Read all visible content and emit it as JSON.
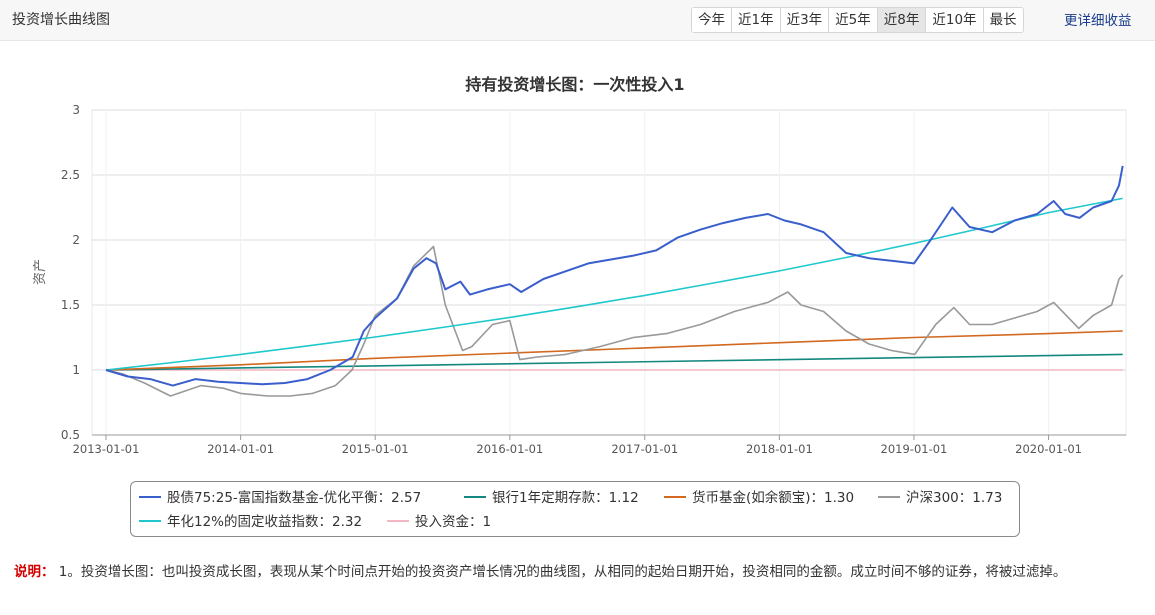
{
  "header": {
    "title": "投资增长曲线图",
    "ranges": [
      "今年",
      "近1年",
      "近3年",
      "近5年",
      "近8年",
      "近10年",
      "最长"
    ],
    "active_range": "近8年",
    "more_link": "更详细收益"
  },
  "chart_data": {
    "type": "line",
    "title": "持有投资增长图：一次性投入1",
    "ylabel": "资产",
    "xlabel": "",
    "ylim": [
      0.5,
      3
    ],
    "yticks": [
      "0.5",
      "1",
      "1.5",
      "2",
      "2.5",
      "3"
    ],
    "yticks_values": [
      0.5,
      1,
      1.5,
      2,
      2.5,
      3
    ],
    "xlim": [
      "2012-11-24",
      "2020-07-29"
    ],
    "xticks": [
      "2013-01-01",
      "2014-01-01",
      "2015-01-01",
      "2016-01-01",
      "2017-01-01",
      "2018-01-01",
      "2019-01-01",
      "2020-01-01"
    ],
    "grid": true,
    "legend_position": "bottom",
    "series": [
      {
        "name": "股债75:25-富国指数基金-优化平衡",
        "value_label": "2.57",
        "color": "#3a5fcd",
        "points": [
          [
            "2013-01-01",
            1.0
          ],
          [
            "2013-03-01",
            0.95
          ],
          [
            "2013-05-01",
            0.93
          ],
          [
            "2013-07-01",
            0.88
          ],
          [
            "2013-09-01",
            0.93
          ],
          [
            "2013-11-01",
            0.91
          ],
          [
            "2014-01-01",
            0.9
          ],
          [
            "2014-03-01",
            0.89
          ],
          [
            "2014-05-01",
            0.9
          ],
          [
            "2014-07-01",
            0.93
          ],
          [
            "2014-09-01",
            1.0
          ],
          [
            "2014-11-01",
            1.1
          ],
          [
            "2014-12-01",
            1.3
          ],
          [
            "2015-01-01",
            1.4
          ],
          [
            "2015-03-01",
            1.55
          ],
          [
            "2015-04-15",
            1.78
          ],
          [
            "2015-05-20",
            1.86
          ],
          [
            "2015-06-15",
            1.82
          ],
          [
            "2015-07-10",
            1.62
          ],
          [
            "2015-08-20",
            1.68
          ],
          [
            "2015-09-15",
            1.58
          ],
          [
            "2015-11-01",
            1.62
          ],
          [
            "2016-01-01",
            1.66
          ],
          [
            "2016-02-01",
            1.6
          ],
          [
            "2016-04-01",
            1.7
          ],
          [
            "2016-06-01",
            1.76
          ],
          [
            "2016-08-01",
            1.82
          ],
          [
            "2016-10-01",
            1.85
          ],
          [
            "2016-12-01",
            1.88
          ],
          [
            "2017-02-01",
            1.92
          ],
          [
            "2017-04-01",
            2.02
          ],
          [
            "2017-06-01",
            2.08
          ],
          [
            "2017-08-01",
            2.13
          ],
          [
            "2017-10-01",
            2.17
          ],
          [
            "2017-12-01",
            2.2
          ],
          [
            "2018-01-15",
            2.15
          ],
          [
            "2018-03-01",
            2.12
          ],
          [
            "2018-05-01",
            2.06
          ],
          [
            "2018-07-01",
            1.9
          ],
          [
            "2018-09-01",
            1.86
          ],
          [
            "2018-11-01",
            1.84
          ],
          [
            "2019-01-01",
            1.82
          ],
          [
            "2019-02-15",
            2.0
          ],
          [
            "2019-04-15",
            2.25
          ],
          [
            "2019-06-01",
            2.1
          ],
          [
            "2019-08-01",
            2.06
          ],
          [
            "2019-10-01",
            2.15
          ],
          [
            "2019-12-01",
            2.2
          ],
          [
            "2020-01-15",
            2.3
          ],
          [
            "2020-02-15",
            2.2
          ],
          [
            "2020-03-25",
            2.17
          ],
          [
            "2020-05-01",
            2.25
          ],
          [
            "2020-06-20",
            2.3
          ],
          [
            "2020-07-10",
            2.42
          ],
          [
            "2020-07-20",
            2.57
          ]
        ]
      },
      {
        "name": "银行1年定期存款",
        "value_label": "1.12",
        "color": "#14887e",
        "points": [
          [
            "2013-01-01",
            1.0
          ],
          [
            "2020-07-20",
            1.12
          ]
        ]
      },
      {
        "name": "货币基金(如余额宝)",
        "value_label": "1.30",
        "color": "#d2691e",
        "points": [
          [
            "2013-01-01",
            1.0
          ],
          [
            "2014-01-01",
            1.04
          ],
          [
            "2015-01-01",
            1.09
          ],
          [
            "2016-01-01",
            1.13
          ],
          [
            "2017-01-01",
            1.17
          ],
          [
            "2018-01-01",
            1.21
          ],
          [
            "2019-01-01",
            1.25
          ],
          [
            "2020-01-01",
            1.28
          ],
          [
            "2020-07-20",
            1.3
          ]
        ]
      },
      {
        "name": "沪深300",
        "value_label": "1.73",
        "color": "#999999",
        "points": [
          [
            "2013-01-01",
            1.0
          ],
          [
            "2013-02-15",
            0.97
          ],
          [
            "2013-04-15",
            0.9
          ],
          [
            "2013-06-25",
            0.8
          ],
          [
            "2013-09-15",
            0.88
          ],
          [
            "2013-11-15",
            0.86
          ],
          [
            "2014-01-01",
            0.82
          ],
          [
            "2014-03-15",
            0.8
          ],
          [
            "2014-05-15",
            0.8
          ],
          [
            "2014-07-15",
            0.82
          ],
          [
            "2014-09-15",
            0.88
          ],
          [
            "2014-10-30",
            1.0
          ],
          [
            "2014-12-01",
            1.2
          ],
          [
            "2015-01-01",
            1.42
          ],
          [
            "2015-03-01",
            1.55
          ],
          [
            "2015-04-15",
            1.8
          ],
          [
            "2015-06-08",
            1.95
          ],
          [
            "2015-07-10",
            1.5
          ],
          [
            "2015-08-26",
            1.15
          ],
          [
            "2015-09-20",
            1.18
          ],
          [
            "2015-11-15",
            1.35
          ],
          [
            "2016-01-01",
            1.38
          ],
          [
            "2016-01-28",
            1.08
          ],
          [
            "2016-03-15",
            1.1
          ],
          [
            "2016-06-01",
            1.12
          ],
          [
            "2016-09-01",
            1.18
          ],
          [
            "2016-12-01",
            1.25
          ],
          [
            "2017-03-01",
            1.28
          ],
          [
            "2017-06-01",
            1.35
          ],
          [
            "2017-09-01",
            1.45
          ],
          [
            "2017-12-01",
            1.52
          ],
          [
            "2018-01-24",
            1.6
          ],
          [
            "2018-03-01",
            1.5
          ],
          [
            "2018-05-01",
            1.45
          ],
          [
            "2018-07-01",
            1.3
          ],
          [
            "2018-09-01",
            1.2
          ],
          [
            "2018-11-01",
            1.15
          ],
          [
            "2019-01-03",
            1.12
          ],
          [
            "2019-03-01",
            1.35
          ],
          [
            "2019-04-19",
            1.48
          ],
          [
            "2019-06-01",
            1.35
          ],
          [
            "2019-08-01",
            1.35
          ],
          [
            "2019-10-01",
            1.4
          ],
          [
            "2019-12-01",
            1.45
          ],
          [
            "2020-01-15",
            1.52
          ],
          [
            "2020-03-23",
            1.32
          ],
          [
            "2020-05-01",
            1.42
          ],
          [
            "2020-06-20",
            1.5
          ],
          [
            "2020-07-10",
            1.7
          ],
          [
            "2020-07-20",
            1.73
          ]
        ]
      },
      {
        "name": "年化12%的固定收益指数",
        "value_label": "2.32",
        "color": "#1fc8cd",
        "points": [
          [
            "2013-01-01",
            1.0
          ],
          [
            "2013-07-01",
            1.058
          ],
          [
            "2014-01-01",
            1.12
          ],
          [
            "2014-07-01",
            1.185
          ],
          [
            "2015-01-01",
            1.254
          ],
          [
            "2015-07-01",
            1.327
          ],
          [
            "2016-01-01",
            1.405
          ],
          [
            "2016-07-01",
            1.487
          ],
          [
            "2017-01-01",
            1.574
          ],
          [
            "2017-07-01",
            1.666
          ],
          [
            "2018-01-01",
            1.762
          ],
          [
            "2018-07-01",
            1.865
          ],
          [
            "2019-01-01",
            1.974
          ],
          [
            "2019-07-01",
            2.089
          ],
          [
            "2020-01-01",
            2.211
          ],
          [
            "2020-07-20",
            2.32
          ]
        ]
      },
      {
        "name": "投入资金",
        "value_label": "1",
        "color": "#f4b6c2",
        "points": [
          [
            "2013-01-01",
            1.0
          ],
          [
            "2020-07-20",
            1.0
          ]
        ]
      }
    ]
  },
  "legend": {
    "sep": "："
  },
  "note": {
    "label": "说明：",
    "text": "1。投资增长图：也叫投资成长图，表现从某个时间点开始的投资资产增长情况的曲线图，从相同的起始日期开始，投资相同的金额。成立时间不够的证券，将被过滤掉。"
  }
}
